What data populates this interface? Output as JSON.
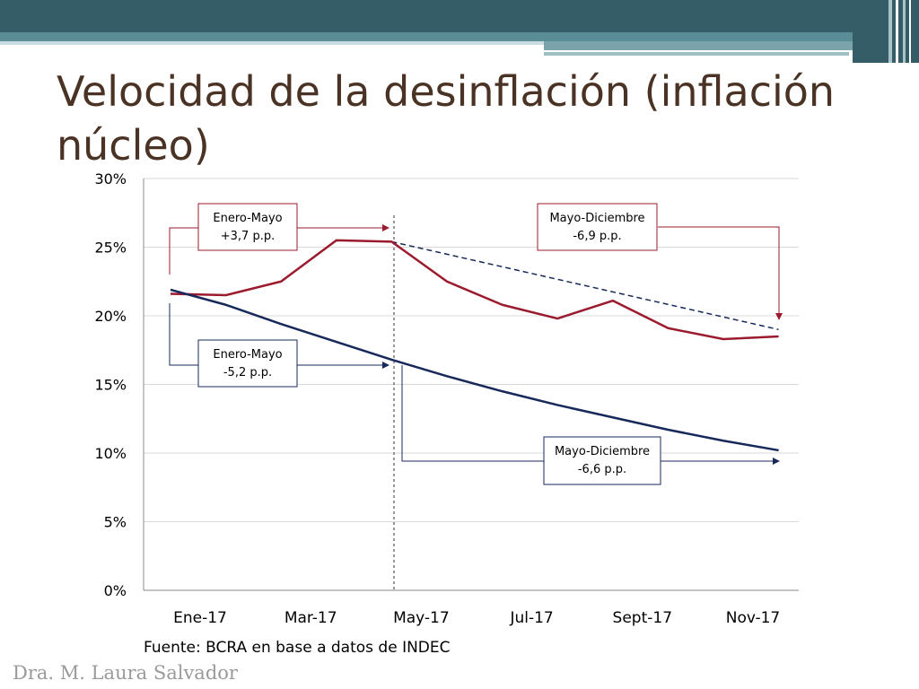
{
  "slide": {
    "title": "Velocidad de la desinflación (inflación núcleo)",
    "author": "Dra. M. Laura Salvador",
    "source": "Fuente: BCRA en base a datos de INDEC"
  },
  "colors": {
    "red_series": "#9b1b2e",
    "blue_series": "#17295a",
    "bar_dark": "#345d68",
    "bar_light": "#5b8d97"
  },
  "chart_data": {
    "type": "line",
    "title": "",
    "xlabel": "",
    "ylabel": "",
    "ylim": [
      0,
      30
    ],
    "yticks": [
      "0%",
      "5%",
      "10%",
      "15%",
      "20%",
      "25%",
      "30%"
    ],
    "x_tick_labels": [
      {
        "label": "Ene-17",
        "x": 0
      },
      {
        "label": "Mar-17",
        "x": 2
      },
      {
        "label": "May-17",
        "x": 4
      },
      {
        "label": "Jul-17",
        "x": 6
      },
      {
        "label": "Sept-17",
        "x": 8
      },
      {
        "label": "Nov-17",
        "x": 10
      }
    ],
    "x": [
      0,
      1,
      2,
      3,
      4,
      5,
      6,
      7,
      8,
      9,
      10,
      11
    ],
    "grid": true,
    "series": [
      {
        "color": "#9b1b2e",
        "values": [
          21.6,
          21.5,
          22.5,
          25.5,
          25.4,
          22.5,
          20.8,
          19.8,
          21.1,
          19.1,
          18.3,
          18.5
        ]
      },
      {
        "color": "#17295a",
        "values": [
          21.9,
          20.8,
          19.4,
          18.1,
          16.8,
          15.6,
          14.5,
          13.5,
          12.6,
          11.7,
          10.9,
          10.2
        ]
      }
    ],
    "annotations": [
      {
        "line1": "Enero-Mayo",
        "line2": "+3,7 p.p.",
        "color": "#9b1b2e"
      },
      {
        "line1": "Mayo-Diciembre",
        "line2": "-6,9 p.p.",
        "color": "#9b1b2e"
      },
      {
        "line1": "Enero-Mayo",
        "line2": "-5,2 p.p.",
        "color": "#17295a"
      },
      {
        "line1": "Mayo-Diciembre",
        "line2": "-6,6 p.p.",
        "color": "#17295a"
      }
    ]
  }
}
